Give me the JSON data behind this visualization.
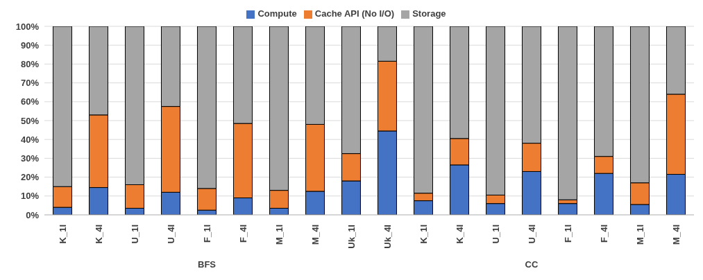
{
  "chart_data": {
    "type": "bar",
    "stacked": true,
    "categories": [
      "K_1I",
      "K_4I",
      "U_1I",
      "U_4I",
      "F_1I",
      "F_4I",
      "M_1I",
      "M_4I",
      "Uk_1I",
      "Uk_4I",
      "K_1I",
      "K_4I",
      "U_1I",
      "U_4I",
      "F_1I",
      "F_4I",
      "M_1I",
      "M_4I"
    ],
    "series": [
      {
        "name": "Compute",
        "color": "#4472c4",
        "values": [
          4,
          14.5,
          3.5,
          12,
          2.5,
          9,
          3.5,
          12.5,
          18,
          44.5,
          7.5,
          26.5,
          6,
          23,
          6,
          22,
          5.5,
          21.5
        ]
      },
      {
        "name": "Cache API (No I/O)",
        "color": "#ed7d31",
        "values": [
          11,
          38.5,
          12.5,
          45.5,
          11.5,
          39.5,
          9.5,
          35.5,
          14.5,
          37,
          4,
          14,
          4.5,
          15,
          2,
          9,
          11.5,
          42.5
        ]
      },
      {
        "name": "Storage",
        "color": "#a5a5a5",
        "values": [
          85,
          47,
          84,
          42.5,
          86,
          51.5,
          87,
          52,
          67.5,
          18.5,
          88.5,
          59.5,
          89.5,
          62,
          92,
          69,
          83,
          36
        ]
      }
    ],
    "ylim": [
      0,
      100
    ],
    "yticks": [
      {
        "value": 0,
        "label": "0%"
      },
      {
        "value": 10,
        "label": "10%"
      },
      {
        "value": 20,
        "label": "20%"
      },
      {
        "value": 30,
        "label": "30%"
      },
      {
        "value": 40,
        "label": "40%"
      },
      {
        "value": 50,
        "label": "50%"
      },
      {
        "value": 60,
        "label": "60%"
      },
      {
        "value": 70,
        "label": "70%"
      },
      {
        "value": 80,
        "label": "80%"
      },
      {
        "value": 90,
        "label": "90%"
      },
      {
        "value": 100,
        "label": "100%"
      }
    ],
    "grid": "y",
    "legend": "top",
    "annotations": [
      "BFS",
      "CC"
    ]
  }
}
